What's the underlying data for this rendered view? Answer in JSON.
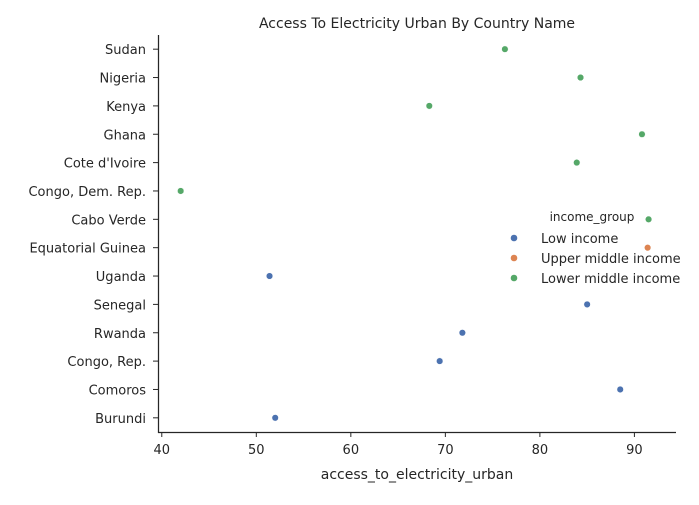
{
  "chart_data": {
    "type": "scatter",
    "title": "Access To Electricity Urban By Country Name",
    "xlabel": "access_to_electricity_urban",
    "ylabel": "",
    "xlim": [
      39.6,
      94.4
    ],
    "xticks": [
      40,
      50,
      60,
      70,
      80,
      90
    ],
    "categories": [
      "Sudan",
      "Nigeria",
      "Kenya",
      "Ghana",
      "Cote d'Ivoire",
      "Congo, Dem. Rep.",
      "Cabo Verde",
      "Equatorial Guinea",
      "Uganda",
      "Senegal",
      "Rwanda",
      "Congo, Rep.",
      "Comoros",
      "Burundi"
    ],
    "grid": false,
    "legend": {
      "title": "income_group",
      "placement": "center-right"
    },
    "series": [
      {
        "name": "Low income",
        "color": "#4c72b0",
        "points": [
          {
            "category": "Uganda",
            "x": 51.4
          },
          {
            "category": "Senegal",
            "x": 85.0
          },
          {
            "category": "Rwanda",
            "x": 71.8
          },
          {
            "category": "Congo, Rep.",
            "x": 69.4
          },
          {
            "category": "Comoros",
            "x": 88.5
          },
          {
            "category": "Burundi",
            "x": 52.0
          }
        ]
      },
      {
        "name": "Upper middle income",
        "color": "#dd8452",
        "points": [
          {
            "category": "Equatorial Guinea",
            "x": 91.4
          }
        ]
      },
      {
        "name": "Lower middle income",
        "color": "#55a868",
        "points": [
          {
            "category": "Sudan",
            "x": 76.3
          },
          {
            "category": "Nigeria",
            "x": 84.3
          },
          {
            "category": "Kenya",
            "x": 68.3
          },
          {
            "category": "Ghana",
            "x": 90.8
          },
          {
            "category": "Cote d'Ivoire",
            "x": 83.9
          },
          {
            "category": "Congo, Dem. Rep.",
            "x": 42.0
          },
          {
            "category": "Cabo Verde",
            "x": 91.5
          }
        ]
      }
    ]
  }
}
